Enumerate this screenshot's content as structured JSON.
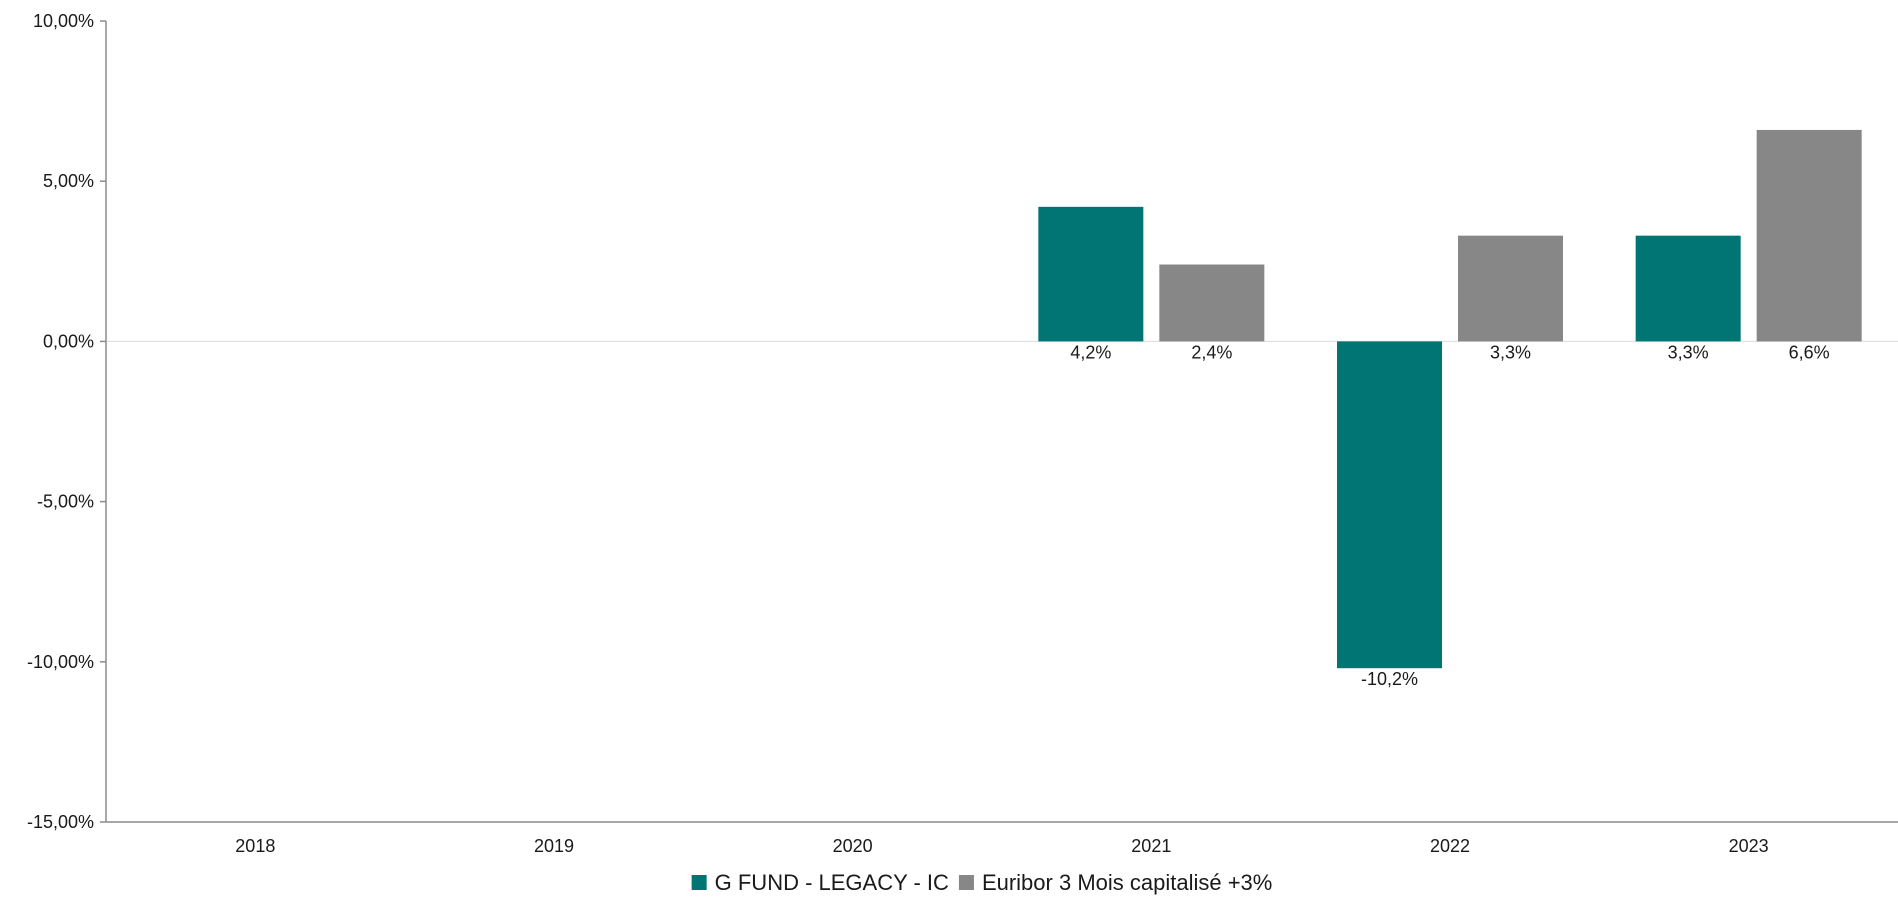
{
  "chart_data": {
    "type": "bar",
    "title": "",
    "xlabel": "",
    "ylabel": "",
    "categories": [
      "2018",
      "2019",
      "2020",
      "2021",
      "2022",
      "2023"
    ],
    "series": [
      {
        "name": "G FUND - LEGACY - IC",
        "color": "#007574",
        "values": [
          null,
          null,
          null,
          4.2,
          -10.2,
          3.3
        ],
        "labels": [
          "",
          "",
          "",
          "4,2%",
          "-10,2%",
          "3,3%"
        ]
      },
      {
        "name": "Euribor 3 Mois capitalisé +3%",
        "color": "#878787",
        "values": [
          null,
          null,
          null,
          2.4,
          3.3,
          6.6
        ],
        "labels": [
          "",
          "",
          "",
          "2,4%",
          "3,3%",
          "6,6%"
        ]
      }
    ],
    "ylim": [
      -15,
      10
    ],
    "yticks": [
      10,
      5,
      0,
      -5,
      -10,
      -15
    ],
    "ytick_labels": [
      "10,00%",
      "5,00%",
      "0,00%",
      "-5,00%",
      "-10,00%",
      "-15,00%"
    ],
    "grid": false,
    "legend_position": "bottom-center"
  }
}
